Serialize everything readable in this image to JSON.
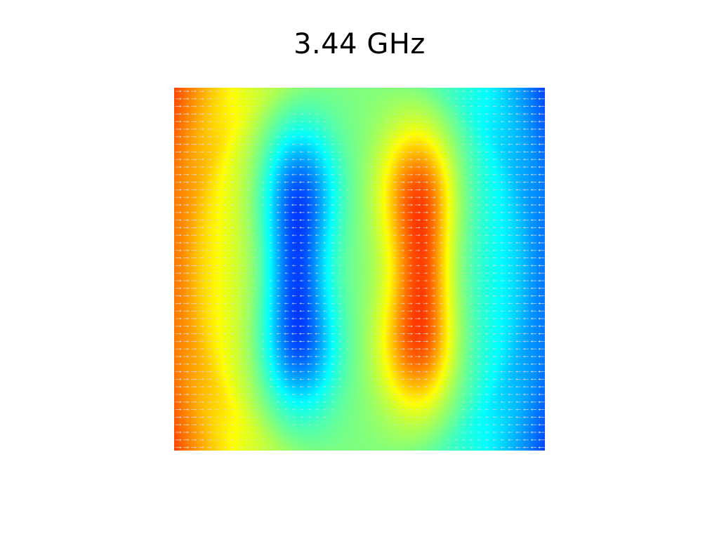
{
  "plot": {
    "title": "3.44 GHz",
    "colormap": "jet",
    "vector_glyphs": "arrows",
    "vector_glyph_color": "#d8d8d8"
  }
}
